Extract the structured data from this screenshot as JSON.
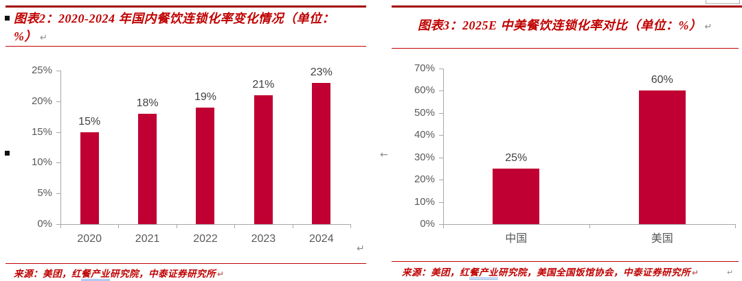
{
  "colors": {
    "title_red": "#C00000",
    "rule_thick_red": "#A40000",
    "rule_thin_red": "#C00000",
    "bar_red": "#C00032",
    "axis_gray": "#A6A6A6",
    "tick_label_gray": "#595959",
    "value_label_gray": "#3F3F3F",
    "source_red": "#C00000",
    "link_underline_blue": "#7FA8E8"
  },
  "artifacts": {
    "return_mark": "↵",
    "left_arrow_mark": "←"
  },
  "panels": [
    {
      "title": "图表2：2020-2024 年国内餐饮连锁化率变化情况（单位：%）",
      "source": {
        "prefix": "来源：美团，红",
        "link": "餐产业",
        "suffix": "研究院，中泰证券研究所"
      }
    },
    {
      "title": "图表3：2025E 中美餐饮连锁化率对比（单位：%）",
      "source": {
        "prefix": "来源：美团，红",
        "link": "餐产业",
        "suffix": "研究院，美国全国饭馆协会，中泰证券研究所"
      }
    }
  ],
  "chart_data": [
    {
      "type": "bar",
      "title": "2020-2024 年国内餐饮连锁化率变化情况",
      "unit": "%",
      "categories": [
        "2020",
        "2021",
        "2022",
        "2023",
        "2024"
      ],
      "values": [
        15,
        18,
        19,
        21,
        23
      ],
      "data_labels": [
        "15%",
        "18%",
        "19%",
        "21%",
        "23%"
      ],
      "xlabel": "",
      "ylabel": "",
      "ylim": [
        0,
        25
      ],
      "ytick_step": 5,
      "ytick_labels": [
        "0%",
        "5%",
        "10%",
        "15%",
        "20%",
        "25%"
      ],
      "grid": false,
      "legend": false,
      "bar_color": "#C00032"
    },
    {
      "type": "bar",
      "title": "2025E 中美餐饮连锁化率对比",
      "unit": "%",
      "categories": [
        "中国",
        "美国"
      ],
      "values": [
        25,
        60
      ],
      "data_labels": [
        "25%",
        "60%"
      ],
      "xlabel": "",
      "ylabel": "",
      "ylim": [
        0,
        70
      ],
      "ytick_step": 10,
      "ytick_labels": [
        "0%",
        "10%",
        "20%",
        "30%",
        "40%",
        "50%",
        "60%",
        "70%"
      ],
      "grid": false,
      "legend": false,
      "bar_color": "#C00032"
    }
  ]
}
